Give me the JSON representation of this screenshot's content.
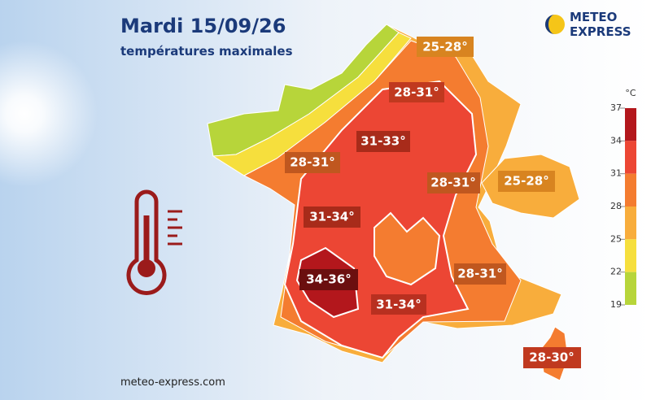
{
  "header": {
    "title": "Mardi 15/09/26",
    "subtitle": "températures maximales"
  },
  "logo": {
    "line1": "METEO",
    "line2": "EXPRESS"
  },
  "legend": {
    "unit": "°C",
    "ticks": [
      37,
      34,
      31,
      28,
      25,
      22,
      19
    ],
    "colors": [
      "#b3171c",
      "#ec4634",
      "#f47c30",
      "#f8ad3c",
      "#f6df3d",
      "#b7d53a"
    ]
  },
  "map_labels": [
    "25-28°",
    "28-31°",
    "31-33°",
    "28-31°",
    "28-31°",
    "25-28°",
    "31-34°",
    "34-36°",
    "28-31°",
    "31-34°",
    "28-30°"
  ],
  "footer": {
    "url": "meteo-express.com"
  }
}
